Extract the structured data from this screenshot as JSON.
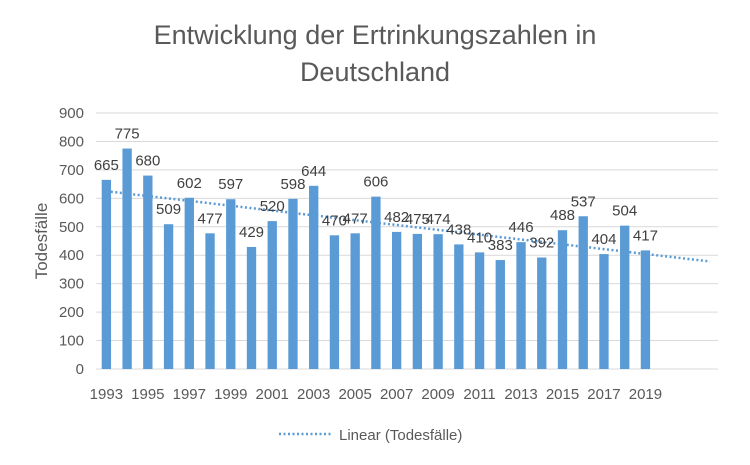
{
  "chart_data": {
    "type": "bar",
    "title_lines": [
      "Entwicklung der Ertrinkungszahlen in",
      "Deutschland"
    ],
    "ylabel": "Todesfälle",
    "xlabel": "",
    "ylim": [
      0,
      900
    ],
    "yticks": [
      0,
      100,
      200,
      300,
      400,
      500,
      600,
      700,
      800,
      900
    ],
    "grid": true,
    "categories": [
      "1993",
      "1994",
      "1995",
      "1996",
      "1997",
      "1998",
      "1999",
      "2000",
      "2001",
      "2002",
      "2003",
      "2004",
      "2005",
      "2006",
      "2007",
      "2008",
      "2009",
      "2010",
      "2011",
      "2012",
      "2013",
      "2014",
      "2015",
      "2016",
      "2017",
      "2018",
      "2019"
    ],
    "x_tick_labels": [
      "1993",
      "1995",
      "1997",
      "1999",
      "2001",
      "2003",
      "2005",
      "2007",
      "2009",
      "2011",
      "2013",
      "2015",
      "2017",
      "2019"
    ],
    "series": [
      {
        "name": "Todesfälle",
        "color": "#5b9bd5",
        "values": [
          665,
          775,
          680,
          509,
          602,
          477,
          597,
          429,
          520,
          598,
          644,
          470,
          477,
          606,
          482,
          475,
          474,
          438,
          410,
          383,
          446,
          392,
          488,
          537,
          404,
          504,
          417
        ]
      }
    ],
    "trendline": {
      "name": "Linear (Todesfälle)",
      "type": "linear",
      "color": "#5b9bd5",
      "start_value": 625,
      "end_value": 378,
      "forward_periods": 3
    },
    "legend_position": "bottom"
  }
}
